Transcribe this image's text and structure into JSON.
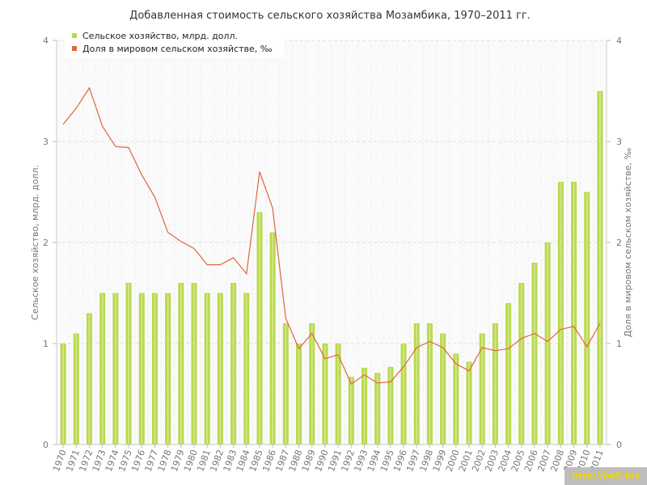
{
  "chart_data": {
    "type": "bar",
    "title": "Добавленная стоимость сельского хозяйства Мозамбика, 1970–2011 гг.",
    "ylabel_left": "Сельское хозяйство, млрд. долл.",
    "ylabel_right": "Доля в мировом сельском хозяйстве, ‰",
    "ylim_left": [
      0,
      4
    ],
    "ylim_right": [
      0,
      4
    ],
    "yticks_left": [
      "0",
      "1",
      "2",
      "3",
      "4"
    ],
    "yticks_right": [
      "0",
      "1",
      "2",
      "3",
      "4"
    ],
    "grid": true,
    "legend_position": "top-left",
    "categories": [
      "1970",
      "1971",
      "1972",
      "1973",
      "1974",
      "1975",
      "1976",
      "1977",
      "1978",
      "1979",
      "1980",
      "1981",
      "1982",
      "1983",
      "1984",
      "1985",
      "1986",
      "1987",
      "1988",
      "1989",
      "1990",
      "1991",
      "1992",
      "1993",
      "1994",
      "1995",
      "1996",
      "1997",
      "1998",
      "1999",
      "2000",
      "2001",
      "2002",
      "2003",
      "2004",
      "2005",
      "2006",
      "2007",
      "2008",
      "2009",
      "2010",
      "2011"
    ],
    "series": [
      {
        "name": "Сельское хозяйство, млрд. долл.",
        "type": "bar",
        "axis": "left",
        "color": "#b8d94a",
        "values": [
          1.0,
          1.1,
          1.3,
          1.5,
          1.5,
          1.6,
          1.5,
          1.5,
          1.5,
          1.6,
          1.6,
          1.5,
          1.5,
          1.6,
          1.5,
          2.3,
          2.1,
          1.2,
          1.0,
          1.2,
          1.0,
          1.0,
          0.67,
          0.76,
          0.71,
          0.77,
          1.0,
          1.2,
          1.2,
          1.1,
          0.9,
          0.82,
          1.1,
          1.2,
          1.4,
          1.6,
          1.8,
          2.0,
          2.6,
          2.6,
          2.5,
          3.5
        ]
      },
      {
        "name": "Доля в мировом сельском хозяйстве, ‰",
        "type": "line",
        "axis": "right",
        "color": "#e0663c",
        "values": [
          3.17,
          3.33,
          3.53,
          3.15,
          2.95,
          2.94,
          2.67,
          2.45,
          2.1,
          2.01,
          1.94,
          1.78,
          1.78,
          1.85,
          1.69,
          2.7,
          2.34,
          1.25,
          0.95,
          1.1,
          0.85,
          0.89,
          0.6,
          0.69,
          0.61,
          0.62,
          0.77,
          0.96,
          1.02,
          0.96,
          0.8,
          0.73,
          0.96,
          0.93,
          0.95,
          1.05,
          1.1,
          1.02,
          1.14,
          1.17,
          0.97,
          1.2
        ]
      }
    ]
  },
  "watermark": "http://be5.biz"
}
